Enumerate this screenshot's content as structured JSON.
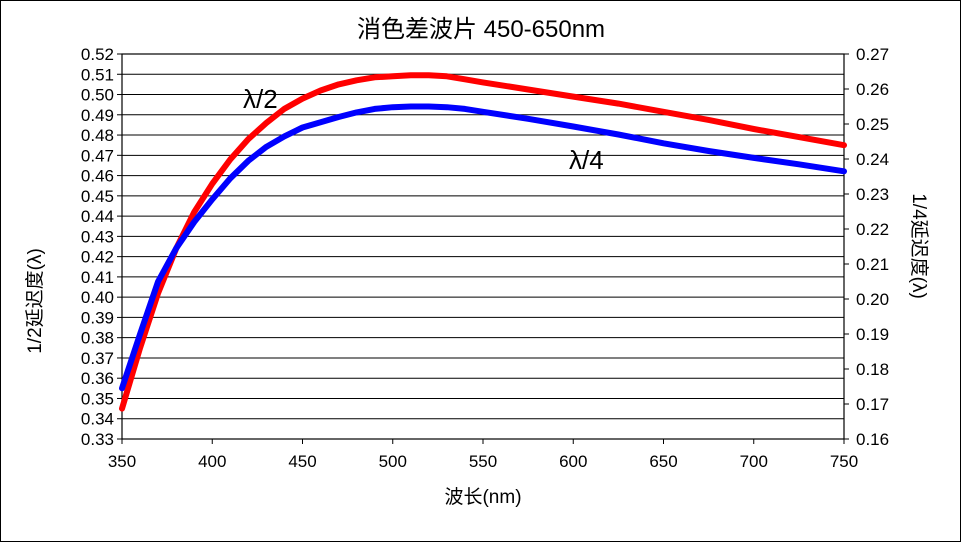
{
  "chart_data": {
    "type": "line",
    "title": "消色差波片 450-650nm",
    "xlabel": "波长(nm)",
    "ylabel_left": "1/2延迟度(λ)",
    "ylabel_right": "1/4延迟度(λ)",
    "xlim": [
      350,
      750
    ],
    "ylim_left": [
      0.33,
      0.52
    ],
    "ylim_right": [
      0.16,
      0.27
    ],
    "x_ticks": [
      350,
      400,
      450,
      500,
      550,
      600,
      650,
      700,
      750
    ],
    "y_left_ticks": [
      "0.33",
      "0.34",
      "0.35",
      "0.36",
      "0.37",
      "0.38",
      "0.39",
      "0.40",
      "0.41",
      "0.42",
      "0.43",
      "0.44",
      "0.45",
      "0.46",
      "0.47",
      "0.48",
      "0.49",
      "0.50",
      "0.51",
      "0.52"
    ],
    "y_right_ticks": [
      "0.16",
      "0.17",
      "0.18",
      "0.19",
      "0.20",
      "0.21",
      "0.22",
      "0.23",
      "0.24",
      "0.25",
      "0.26",
      "0.27"
    ],
    "grid": "horizontal",
    "series": [
      {
        "name": "λ/2",
        "axis": "left",
        "color": "#ff0000",
        "x": [
          350,
          360,
          370,
          380,
          390,
          400,
          410,
          420,
          430,
          440,
          450,
          460,
          470,
          480,
          490,
          500,
          510,
          520,
          530,
          540,
          550,
          575,
          600,
          625,
          650,
          675,
          700,
          725,
          750
        ],
        "values": [
          0.345,
          0.375,
          0.402,
          0.424,
          0.442,
          0.456,
          0.468,
          0.478,
          0.486,
          0.493,
          0.498,
          0.502,
          0.505,
          0.507,
          0.5085,
          0.509,
          0.5095,
          0.5095,
          0.509,
          0.5075,
          0.506,
          0.5025,
          0.499,
          0.4955,
          0.4915,
          0.4875,
          0.483,
          0.479,
          0.475
        ]
      },
      {
        "name": "λ/4",
        "axis": "right",
        "color": "#0000ff",
        "x": [
          350,
          360,
          370,
          380,
          390,
          400,
          410,
          420,
          430,
          440,
          450,
          460,
          470,
          480,
          490,
          500,
          510,
          520,
          530,
          540,
          550,
          575,
          600,
          625,
          650,
          675,
          700,
          725,
          750
        ],
        "values": [
          0.1745,
          0.19,
          0.205,
          0.2145,
          0.222,
          0.2285,
          0.2345,
          0.2395,
          0.2435,
          0.2465,
          0.249,
          0.2505,
          0.252,
          0.2533,
          0.2543,
          0.2548,
          0.255,
          0.255,
          0.2548,
          0.2543,
          0.2535,
          0.2515,
          0.2493,
          0.247,
          0.2445,
          0.2423,
          0.2403,
          0.2385,
          0.2365
        ]
      }
    ]
  }
}
